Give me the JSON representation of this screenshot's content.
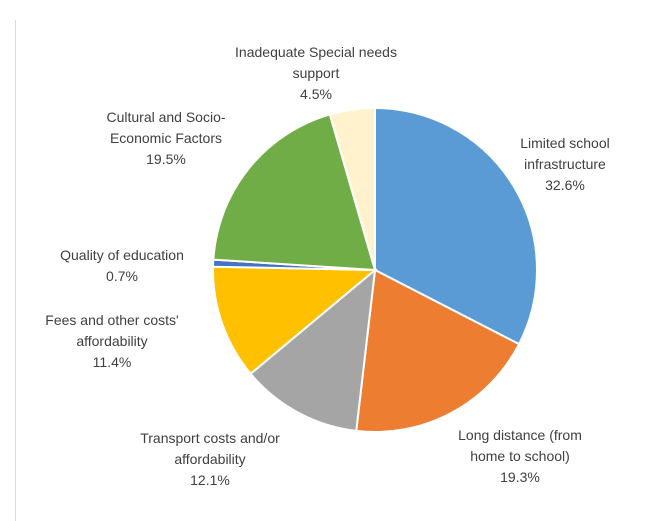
{
  "chart_data": {
    "type": "pie",
    "categories": [
      "Limited school infrastructure",
      "Long distance (from home to school)",
      "Transport costs and/or affordability",
      "Fees and other costs' affordability",
      "Quality of education",
      "Cultural and Socio-Economic Factors",
      "Inadequate Special needs support"
    ],
    "values": [
      32.6,
      19.3,
      12.1,
      11.4,
      0.7,
      19.5,
      4.5
    ],
    "value_labels": [
      "32.6%",
      "19.3%",
      "12.1%",
      "11.4%",
      "0.7%",
      "19.5%",
      "4.5%"
    ],
    "colors": [
      "#5b9bd5",
      "#ed7d31",
      "#a5a5a5",
      "#ffc000",
      "#4472c4",
      "#70ad47",
      "#fff2cc"
    ]
  }
}
